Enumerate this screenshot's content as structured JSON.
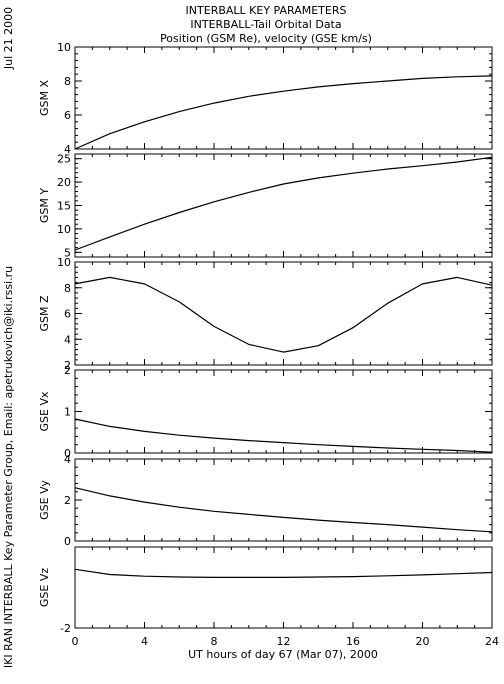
{
  "header": {
    "date": "Jul 21 2000",
    "credit": "IKI RAN INTERBALL Key Parameter Group, Email: apetrukovich@iki.rssi.ru",
    "title_lines": [
      "INTERBALL KEY PARAMETERS",
      "INTERBALL-Tail Orbital Data",
      "Position (GSM Re), velocity (GSE km/s)"
    ]
  },
  "chart_data": {
    "type": "line",
    "xlabel": "UT hours of day  67 (Mar 07), 2000",
    "xlim": [
      0,
      24
    ],
    "x_ticks": [
      0,
      4,
      8,
      12,
      16,
      20,
      24
    ],
    "x_tick_labels": [
      "0",
      "4",
      "8",
      "12",
      "16",
      "20",
      "24"
    ],
    "grid": false,
    "panels": [
      {
        "ylabel": "GSM X",
        "ylim": [
          4,
          10
        ],
        "ticks": [
          4,
          6,
          8,
          10
        ],
        "tick_labels": [
          "4",
          "6",
          "8",
          "10"
        ],
        "x": [
          0,
          2,
          4,
          6,
          8,
          10,
          12,
          14,
          16,
          18,
          20,
          22,
          24
        ],
        "y": [
          4.0,
          4.9,
          5.6,
          6.2,
          6.7,
          7.1,
          7.4,
          7.65,
          7.85,
          8.0,
          8.15,
          8.25,
          8.3
        ]
      },
      {
        "ylabel": "GSM Y",
        "ylim": [
          4,
          26
        ],
        "ticks": [
          5,
          10,
          15,
          20,
          25
        ],
        "tick_labels": [
          "5",
          "10",
          "15",
          "20",
          "25"
        ],
        "x": [
          0,
          2,
          4,
          6,
          8,
          10,
          12,
          14,
          16,
          18,
          20,
          22,
          24
        ],
        "y": [
          5.5,
          8.3,
          11.0,
          13.5,
          15.8,
          17.8,
          19.6,
          20.9,
          21.9,
          22.8,
          23.5,
          24.3,
          25.3
        ]
      },
      {
        "ylabel": "GSM Z",
        "ylim": [
          2,
          10
        ],
        "ticks": [
          2,
          4,
          6,
          8,
          10
        ],
        "tick_labels": [
          "2",
          "4",
          "6",
          "8",
          "10"
        ],
        "x": [
          0,
          2,
          4,
          6,
          8,
          10,
          12,
          14,
          16,
          18,
          20,
          22,
          24
        ],
        "y": [
          8.3,
          8.8,
          8.3,
          6.9,
          5.0,
          3.6,
          3.0,
          3.5,
          4.9,
          6.8,
          8.3,
          8.8,
          8.2
        ]
      },
      {
        "ylabel": "GSE Vx",
        "ylim": [
          0,
          2
        ],
        "ticks": [
          0,
          1,
          2
        ],
        "tick_labels": [
          "0",
          "1",
          "2"
        ],
        "x": [
          0,
          2,
          4,
          6,
          8,
          10,
          12,
          14,
          16,
          18,
          20,
          22,
          24
        ],
        "y": [
          0.82,
          0.64,
          0.52,
          0.43,
          0.36,
          0.3,
          0.25,
          0.2,
          0.16,
          0.12,
          0.09,
          0.06,
          0.02
        ]
      },
      {
        "ylabel": "GSE Vy",
        "ylim": [
          0,
          4
        ],
        "ticks": [
          0,
          2,
          4
        ],
        "tick_labels": [
          "0",
          "2",
          "4"
        ],
        "x": [
          0,
          2,
          4,
          6,
          8,
          10,
          12,
          14,
          16,
          18,
          20,
          22,
          24
        ],
        "y": [
          2.6,
          2.2,
          1.9,
          1.65,
          1.45,
          1.3,
          1.15,
          1.02,
          0.9,
          0.8,
          0.68,
          0.55,
          0.45
        ]
      },
      {
        "ylabel": "GSE Vz",
        "ylim": [
          -2,
          0
        ],
        "ticks": [
          -2
        ],
        "tick_labels": [
          "-2"
        ],
        "x": [
          0,
          2,
          4,
          6,
          8,
          10,
          12,
          14,
          16,
          18,
          20,
          22,
          24
        ],
        "y": [
          -0.55,
          -0.68,
          -0.72,
          -0.74,
          -0.75,
          -0.75,
          -0.75,
          -0.74,
          -0.73,
          -0.71,
          -0.69,
          -0.66,
          -0.63
        ]
      }
    ]
  }
}
